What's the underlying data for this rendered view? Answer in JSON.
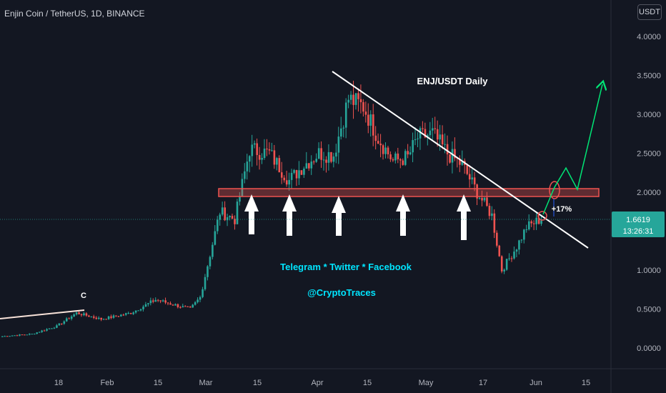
{
  "header": {
    "title": "Enjin Coin / TetherUS, 1D, BINANCE",
    "currency_button": "USDT"
  },
  "price_tag": {
    "price": "1.6619",
    "countdown": "13:26:31"
  },
  "annotations": {
    "chart_title": "ENJ/USDT Daily",
    "social": "Telegram * Twitter * Facebook",
    "handle": "@CryptoTraces",
    "wave_label": "C",
    "percent": "+17%"
  },
  "colors": {
    "up": "#26a69a",
    "down": "#ef5350",
    "bg": "#131722",
    "arrow": "#ffffff",
    "projection": "#00e676",
    "zone": "#ef5350"
  },
  "chart_data": {
    "type": "candlestick",
    "title": "ENJ/USDT Daily",
    "y_ticks": [
      "4.0000",
      "3.5000",
      "3.0000",
      "2.5000",
      "2.0000",
      "1.5000",
      "1.0000",
      "0.5000",
      "0.0000"
    ],
    "x_ticks": [
      "18",
      "Feb",
      "15",
      "Mar",
      "15",
      "Apr",
      "15",
      "May",
      "17",
      "Jun",
      "15"
    ],
    "ylim": [
      -0.1,
      4.2
    ],
    "grid": false,
    "anchors": [
      [
        0,
        0.15
      ],
      [
        12,
        0.18
      ],
      [
        22,
        0.28
      ],
      [
        30,
        0.45
      ],
      [
        40,
        0.37
      ],
      [
        52,
        0.45
      ],
      [
        62,
        0.62
      ],
      [
        70,
        0.55
      ],
      [
        76,
        0.5
      ],
      [
        80,
        0.65
      ],
      [
        84,
        1.2
      ],
      [
        88,
        1.75
      ],
      [
        94,
        1.65
      ],
      [
        100,
        2.55
      ],
      [
        108,
        2.5
      ],
      [
        116,
        2.15
      ],
      [
        122,
        2.35
      ],
      [
        128,
        2.5
      ],
      [
        134,
        2.48
      ],
      [
        140,
        3.2
      ],
      [
        146,
        3.1
      ],
      [
        152,
        2.7
      ],
      [
        158,
        2.4
      ],
      [
        164,
        2.45
      ],
      [
        168,
        2.7
      ],
      [
        174,
        2.75
      ],
      [
        180,
        2.5
      ],
      [
        186,
        2.35
      ],
      [
        192,
        2.0
      ],
      [
        198,
        1.7
      ],
      [
        202,
        1.0
      ],
      [
        208,
        1.3
      ],
      [
        212,
        1.55
      ],
      [
        218,
        1.66
      ]
    ],
    "resistance_zone": [
      1.95,
      2.04
    ],
    "projection": [
      [
        1.66,
        0
      ],
      [
        2.0,
        3
      ],
      [
        2.3,
        6
      ],
      [
        2.05,
        9
      ],
      [
        3.4,
        15
      ]
    ]
  }
}
